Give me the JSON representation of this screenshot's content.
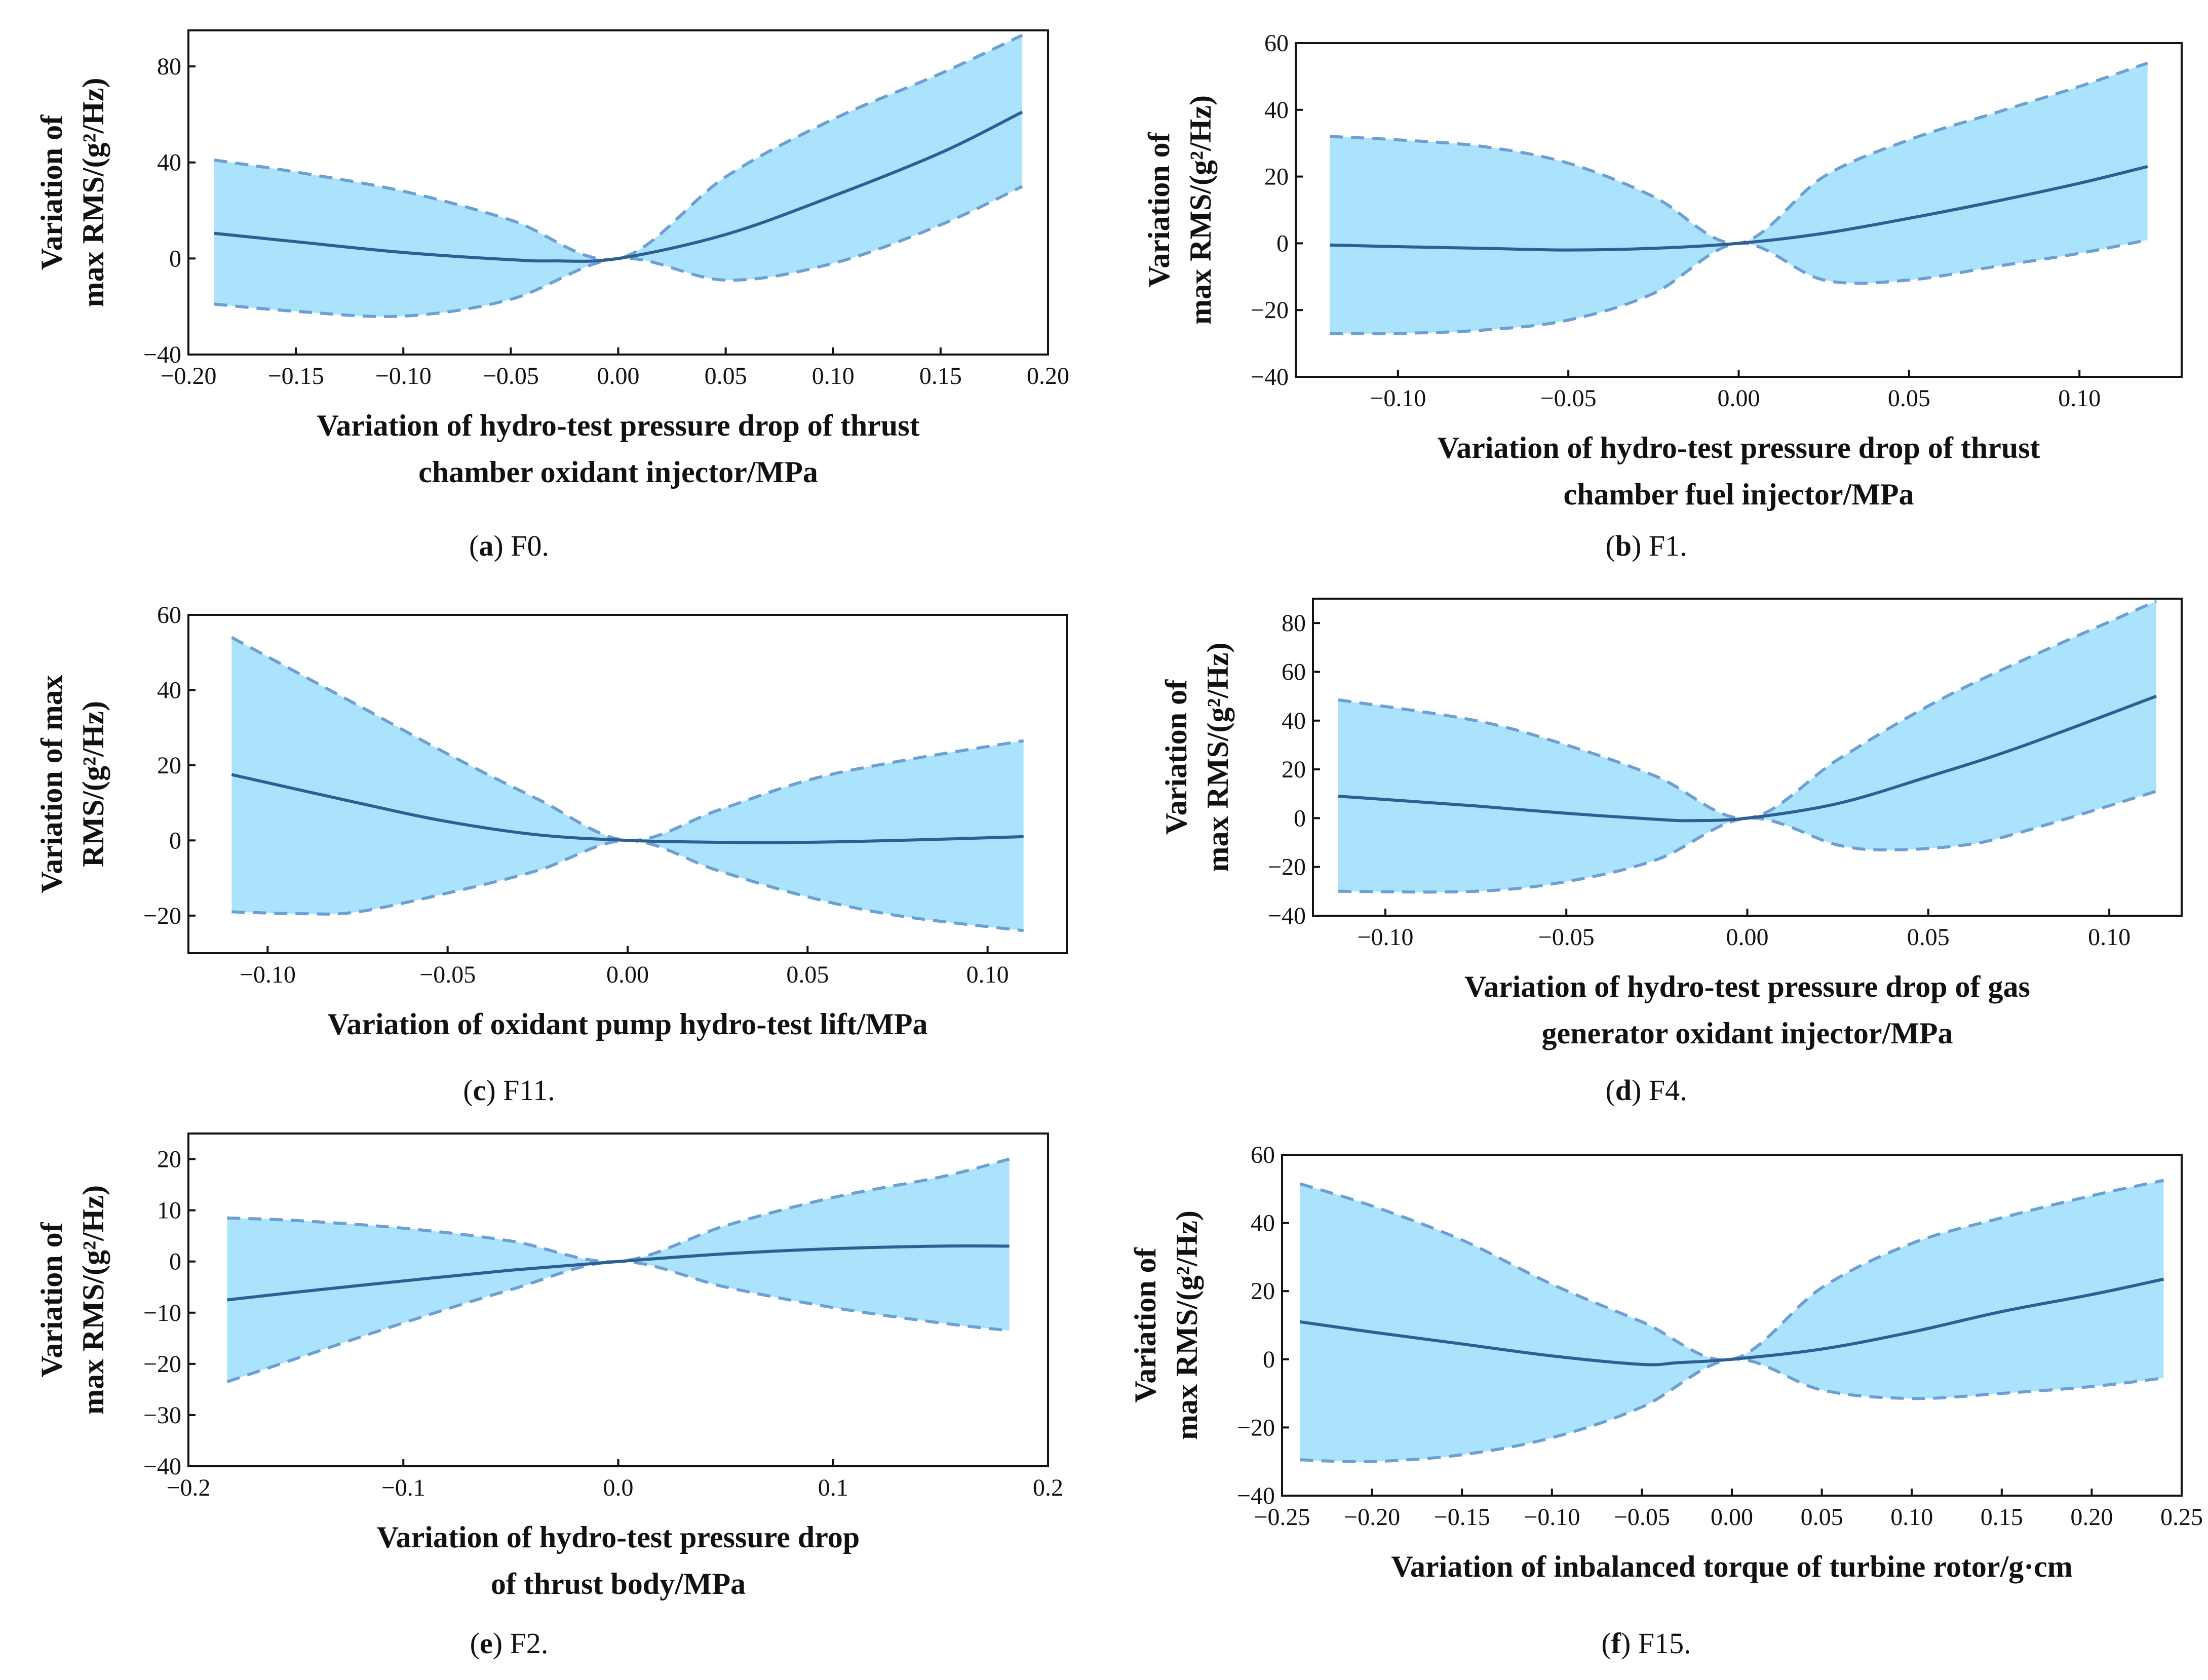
{
  "chart_data": [
    {
      "id": "a",
      "type": "line",
      "caption_letter": "a",
      "caption_text": " F0.",
      "xlabel": [
        "Variation of hydro-test pressure drop of thrust",
        "chamber oxidant injector/MPa"
      ],
      "ylabel": [
        "Variation of",
        "max RMS/(g²/Hz)"
      ],
      "xlim": [
        -0.2,
        0.2
      ],
      "ylim": [
        -40,
        95
      ],
      "xticks": [
        -0.2,
        -0.15,
        -0.1,
        -0.05,
        0.0,
        0.05,
        0.1,
        0.15,
        0.2
      ],
      "xtick_labels": [
        "−0.20",
        "−0.15",
        "−0.10",
        "−0.05",
        "0.00",
        "0.05",
        "0.10",
        "0.15",
        "0.20"
      ],
      "yticks": [
        -40,
        0,
        40,
        80
      ],
      "ytick_labels": [
        "−40",
        "0",
        "40",
        "80"
      ],
      "series": [
        {
          "name": "upper",
          "x": [
            -0.188,
            -0.15,
            -0.1,
            -0.05,
            0.0,
            0.05,
            0.1,
            0.15,
            0.188
          ],
          "values": [
            41,
            36,
            28,
            16,
            0,
            34,
            58,
            77,
            93
          ]
        },
        {
          "name": "mean",
          "x": [
            -0.188,
            -0.15,
            -0.1,
            -0.05,
            -0.03,
            0.0,
            0.05,
            0.1,
            0.15,
            0.188
          ],
          "values": [
            10.5,
            7,
            2.5,
            -0.5,
            -1,
            0,
            10,
            26,
            44,
            61
          ]
        },
        {
          "name": "lower",
          "x": [
            -0.188,
            -0.15,
            -0.1,
            -0.05,
            0.0,
            0.05,
            0.1,
            0.15,
            0.188
          ],
          "values": [
            -19,
            -22,
            -24,
            -17,
            0,
            -9,
            -2,
            14,
            30
          ]
        }
      ]
    },
    {
      "id": "b",
      "type": "line",
      "caption_letter": "b",
      "caption_text": " F1.",
      "xlabel": [
        "Variation of hydro-test pressure drop of thrust",
        "chamber fuel injector/MPa"
      ],
      "ylabel": [
        "Variation of",
        "max RMS/(g²/Hz)"
      ],
      "xlim": [
        -0.13,
        0.13
      ],
      "ylim": [
        -40,
        60
      ],
      "xticks": [
        -0.1,
        -0.05,
        0.0,
        0.05,
        0.1
      ],
      "xtick_labels": [
        "−0.10",
        "−0.05",
        "0.00",
        "0.05",
        "0.10"
      ],
      "yticks": [
        -40,
        -20,
        0,
        20,
        40,
        60
      ],
      "ytick_labels": [
        "−40",
        "−20",
        "0",
        "20",
        "40",
        "60"
      ],
      "series": [
        {
          "name": "upper",
          "x": [
            -0.12,
            -0.1,
            -0.075,
            -0.05,
            -0.025,
            0.0,
            0.025,
            0.05,
            0.075,
            0.1,
            0.12
          ],
          "values": [
            32,
            31,
            29,
            24,
            14,
            0,
            20,
            31,
            39,
            47,
            54
          ]
        },
        {
          "name": "mean",
          "x": [
            -0.12,
            -0.1,
            -0.075,
            -0.05,
            -0.025,
            0.0,
            0.025,
            0.05,
            0.075,
            0.1,
            0.12
          ],
          "values": [
            -0.5,
            -1,
            -1.5,
            -2,
            -1.5,
            0,
            3,
            7.5,
            12.5,
            18,
            23
          ]
        },
        {
          "name": "lower",
          "x": [
            -0.12,
            -0.1,
            -0.075,
            -0.05,
            -0.025,
            0.0,
            0.025,
            0.05,
            0.075,
            0.1,
            0.12
          ],
          "values": [
            -27,
            -27,
            -26,
            -23,
            -15,
            0,
            -11,
            -11,
            -7,
            -3,
            1
          ]
        }
      ]
    },
    {
      "id": "c",
      "type": "line",
      "caption_letter": "c",
      "caption_text": " F11.",
      "xlabel": [
        "Variation of oxidant pump hydro-test lift/MPa"
      ],
      "ylabel": [
        "Variation of max",
        "RMS/(g²/Hz)"
      ],
      "xlim": [
        -0.122,
        0.122
      ],
      "ylim": [
        -30,
        60
      ],
      "xticks": [
        -0.1,
        -0.05,
        0.0,
        0.05,
        0.1
      ],
      "xtick_labels": [
        "−0.10",
        "−0.05",
        "0.00",
        "0.05",
        "0.10"
      ],
      "yticks": [
        -20,
        0,
        20,
        40,
        60
      ],
      "ytick_labels": [
        "−20",
        "0",
        "20",
        "40",
        "60"
      ],
      "series": [
        {
          "name": "upper",
          "x": [
            -0.11,
            -0.075,
            -0.05,
            -0.025,
            0.0,
            0.025,
            0.05,
            0.075,
            0.11
          ],
          "values": [
            54,
            36,
            23,
            11,
            0,
            8,
            16,
            21,
            26.5
          ]
        },
        {
          "name": "mean",
          "x": [
            -0.11,
            -0.075,
            -0.05,
            -0.025,
            0.0,
            0.025,
            0.05,
            0.075,
            0.11
          ],
          "values": [
            17.5,
            10,
            5,
            1.5,
            0,
            -0.5,
            -0.5,
            0,
            1
          ]
        },
        {
          "name": "lower",
          "x": [
            -0.11,
            -0.09,
            -0.075,
            -0.05,
            -0.025,
            0.0,
            0.025,
            0.05,
            0.075,
            0.11
          ],
          "values": [
            -19,
            -19.5,
            -19,
            -14,
            -8,
            0,
            -8,
            -15,
            -20,
            -24
          ]
        }
      ]
    },
    {
      "id": "d",
      "type": "line",
      "caption_letter": "d",
      "caption_text": " F4.",
      "xlabel": [
        "Variation of hydro-test pressure drop of gas",
        "generator oxidant injector/MPa"
      ],
      "ylabel": [
        "Variation of",
        "max RMS/(g²/Hz)"
      ],
      "xlim": [
        -0.12,
        0.12
      ],
      "ylim": [
        -40,
        90
      ],
      "xticks": [
        -0.1,
        -0.05,
        0.0,
        0.05,
        0.1
      ],
      "xtick_labels": [
        "−0.10",
        "−0.05",
        "0.00",
        "0.05",
        "0.10"
      ],
      "yticks": [
        -40,
        -20,
        0,
        20,
        40,
        60,
        80
      ],
      "ytick_labels": [
        "−40",
        "−20",
        "0",
        "20",
        "40",
        "60",
        "80"
      ],
      "series": [
        {
          "name": "upper",
          "x": [
            -0.113,
            -0.075,
            -0.05,
            -0.025,
            0.0,
            0.025,
            0.05,
            0.075,
            0.113
          ],
          "values": [
            48.5,
            40,
            30,
            17,
            0,
            24,
            46,
            64,
            89
          ]
        },
        {
          "name": "mean",
          "x": [
            -0.113,
            -0.075,
            -0.05,
            -0.025,
            -0.015,
            0.0,
            0.025,
            0.05,
            0.075,
            0.113
          ],
          "values": [
            9,
            5,
            2,
            -0.5,
            -1,
            0,
            6,
            17,
            29,
            50
          ]
        },
        {
          "name": "lower",
          "x": [
            -0.113,
            -0.075,
            -0.05,
            -0.025,
            0.0,
            0.025,
            0.04,
            0.06,
            0.075,
            0.113
          ],
          "values": [
            -30,
            -30,
            -26,
            -17,
            0,
            -11,
            -13,
            -11,
            -6,
            11
          ]
        }
      ]
    },
    {
      "id": "e",
      "type": "line",
      "caption_letter": "e",
      "caption_text": " F2.",
      "xlabel": [
        "Variation of hydro-test pressure drop",
        "of thrust body/MPa"
      ],
      "ylabel": [
        "Variation of",
        "max RMS/(g²/Hz)"
      ],
      "xlim": [
        -0.2,
        0.2
      ],
      "ylim": [
        -40,
        25
      ],
      "xticks": [
        -0.2,
        -0.1,
        0.0,
        0.1,
        0.2
      ],
      "xtick_labels": [
        "−0.2",
        "−0.1",
        "0.0",
        "0.1",
        "0.2"
      ],
      "yticks": [
        -40,
        -30,
        -20,
        -10,
        0,
        10,
        20
      ],
      "ytick_labels": [
        "−40",
        "−30",
        "−20",
        "−10",
        "0",
        "10",
        "20"
      ],
      "series": [
        {
          "name": "upper",
          "x": [
            -0.182,
            -0.15,
            -0.1,
            -0.05,
            0.0,
            0.05,
            0.1,
            0.15,
            0.182
          ],
          "values": [
            8.5,
            8,
            6.5,
            4,
            0,
            7,
            12.5,
            16.5,
            20
          ]
        },
        {
          "name": "mean",
          "x": [
            -0.182,
            -0.15,
            -0.1,
            -0.05,
            0.0,
            0.05,
            0.1,
            0.15,
            0.182
          ],
          "values": [
            -7.5,
            -6,
            -3.8,
            -1.7,
            0,
            1.5,
            2.5,
            3,
            3
          ]
        },
        {
          "name": "lower",
          "x": [
            -0.182,
            -0.15,
            -0.1,
            -0.05,
            0.0,
            0.05,
            0.1,
            0.15,
            0.182
          ],
          "values": [
            -23.5,
            -19,
            -12,
            -5.5,
            0,
            -5,
            -9,
            -12,
            -13.5
          ]
        }
      ]
    },
    {
      "id": "f",
      "type": "line",
      "caption_letter": "f",
      "caption_text": " F15.",
      "xlabel": [
        "Variation of  inbalanced torque of turbine rotor/g·cm"
      ],
      "ylabel": [
        "Variation of",
        "max RMS/(g²/Hz)"
      ],
      "xlim": [
        -0.25,
        0.25
      ],
      "ylim": [
        -40,
        60
      ],
      "xticks": [
        -0.25,
        -0.2,
        -0.15,
        -0.1,
        -0.05,
        0.0,
        0.05,
        0.1,
        0.15,
        0.2,
        0.25
      ],
      "xtick_labels": [
        "−0.25",
        "−0.20",
        "−0.15",
        "−0.10",
        "−0.05",
        "0.00",
        "0.05",
        "0.10",
        "0.15",
        "0.20",
        "0.25"
      ],
      "yticks": [
        -40,
        -20,
        0,
        20,
        40,
        60
      ],
      "ytick_labels": [
        "−40",
        "−20",
        "0",
        "20",
        "40",
        "60"
      ],
      "series": [
        {
          "name": "upper",
          "x": [
            -0.24,
            -0.2,
            -0.15,
            -0.1,
            -0.05,
            0.0,
            0.05,
            0.1,
            0.15,
            0.2,
            0.24
          ],
          "values": [
            51.5,
            45,
            35,
            22,
            11,
            0,
            21,
            34,
            41.5,
            48,
            52.5
          ]
        },
        {
          "name": "mean",
          "x": [
            -0.24,
            -0.2,
            -0.15,
            -0.1,
            -0.05,
            -0.03,
            0.0,
            0.05,
            0.1,
            0.15,
            0.2,
            0.24
          ],
          "values": [
            11,
            8,
            4.5,
            1,
            -1.5,
            -1,
            0,
            3,
            8,
            14,
            19,
            23.5
          ]
        },
        {
          "name": "lower",
          "x": [
            -0.24,
            -0.2,
            -0.15,
            -0.1,
            -0.05,
            0.0,
            0.05,
            0.1,
            0.15,
            0.2,
            0.24
          ],
          "values": [
            -29.5,
            -30,
            -28,
            -23,
            -14,
            0,
            -9,
            -11.5,
            -10,
            -8,
            -5.5
          ]
        }
      ]
    }
  ]
}
